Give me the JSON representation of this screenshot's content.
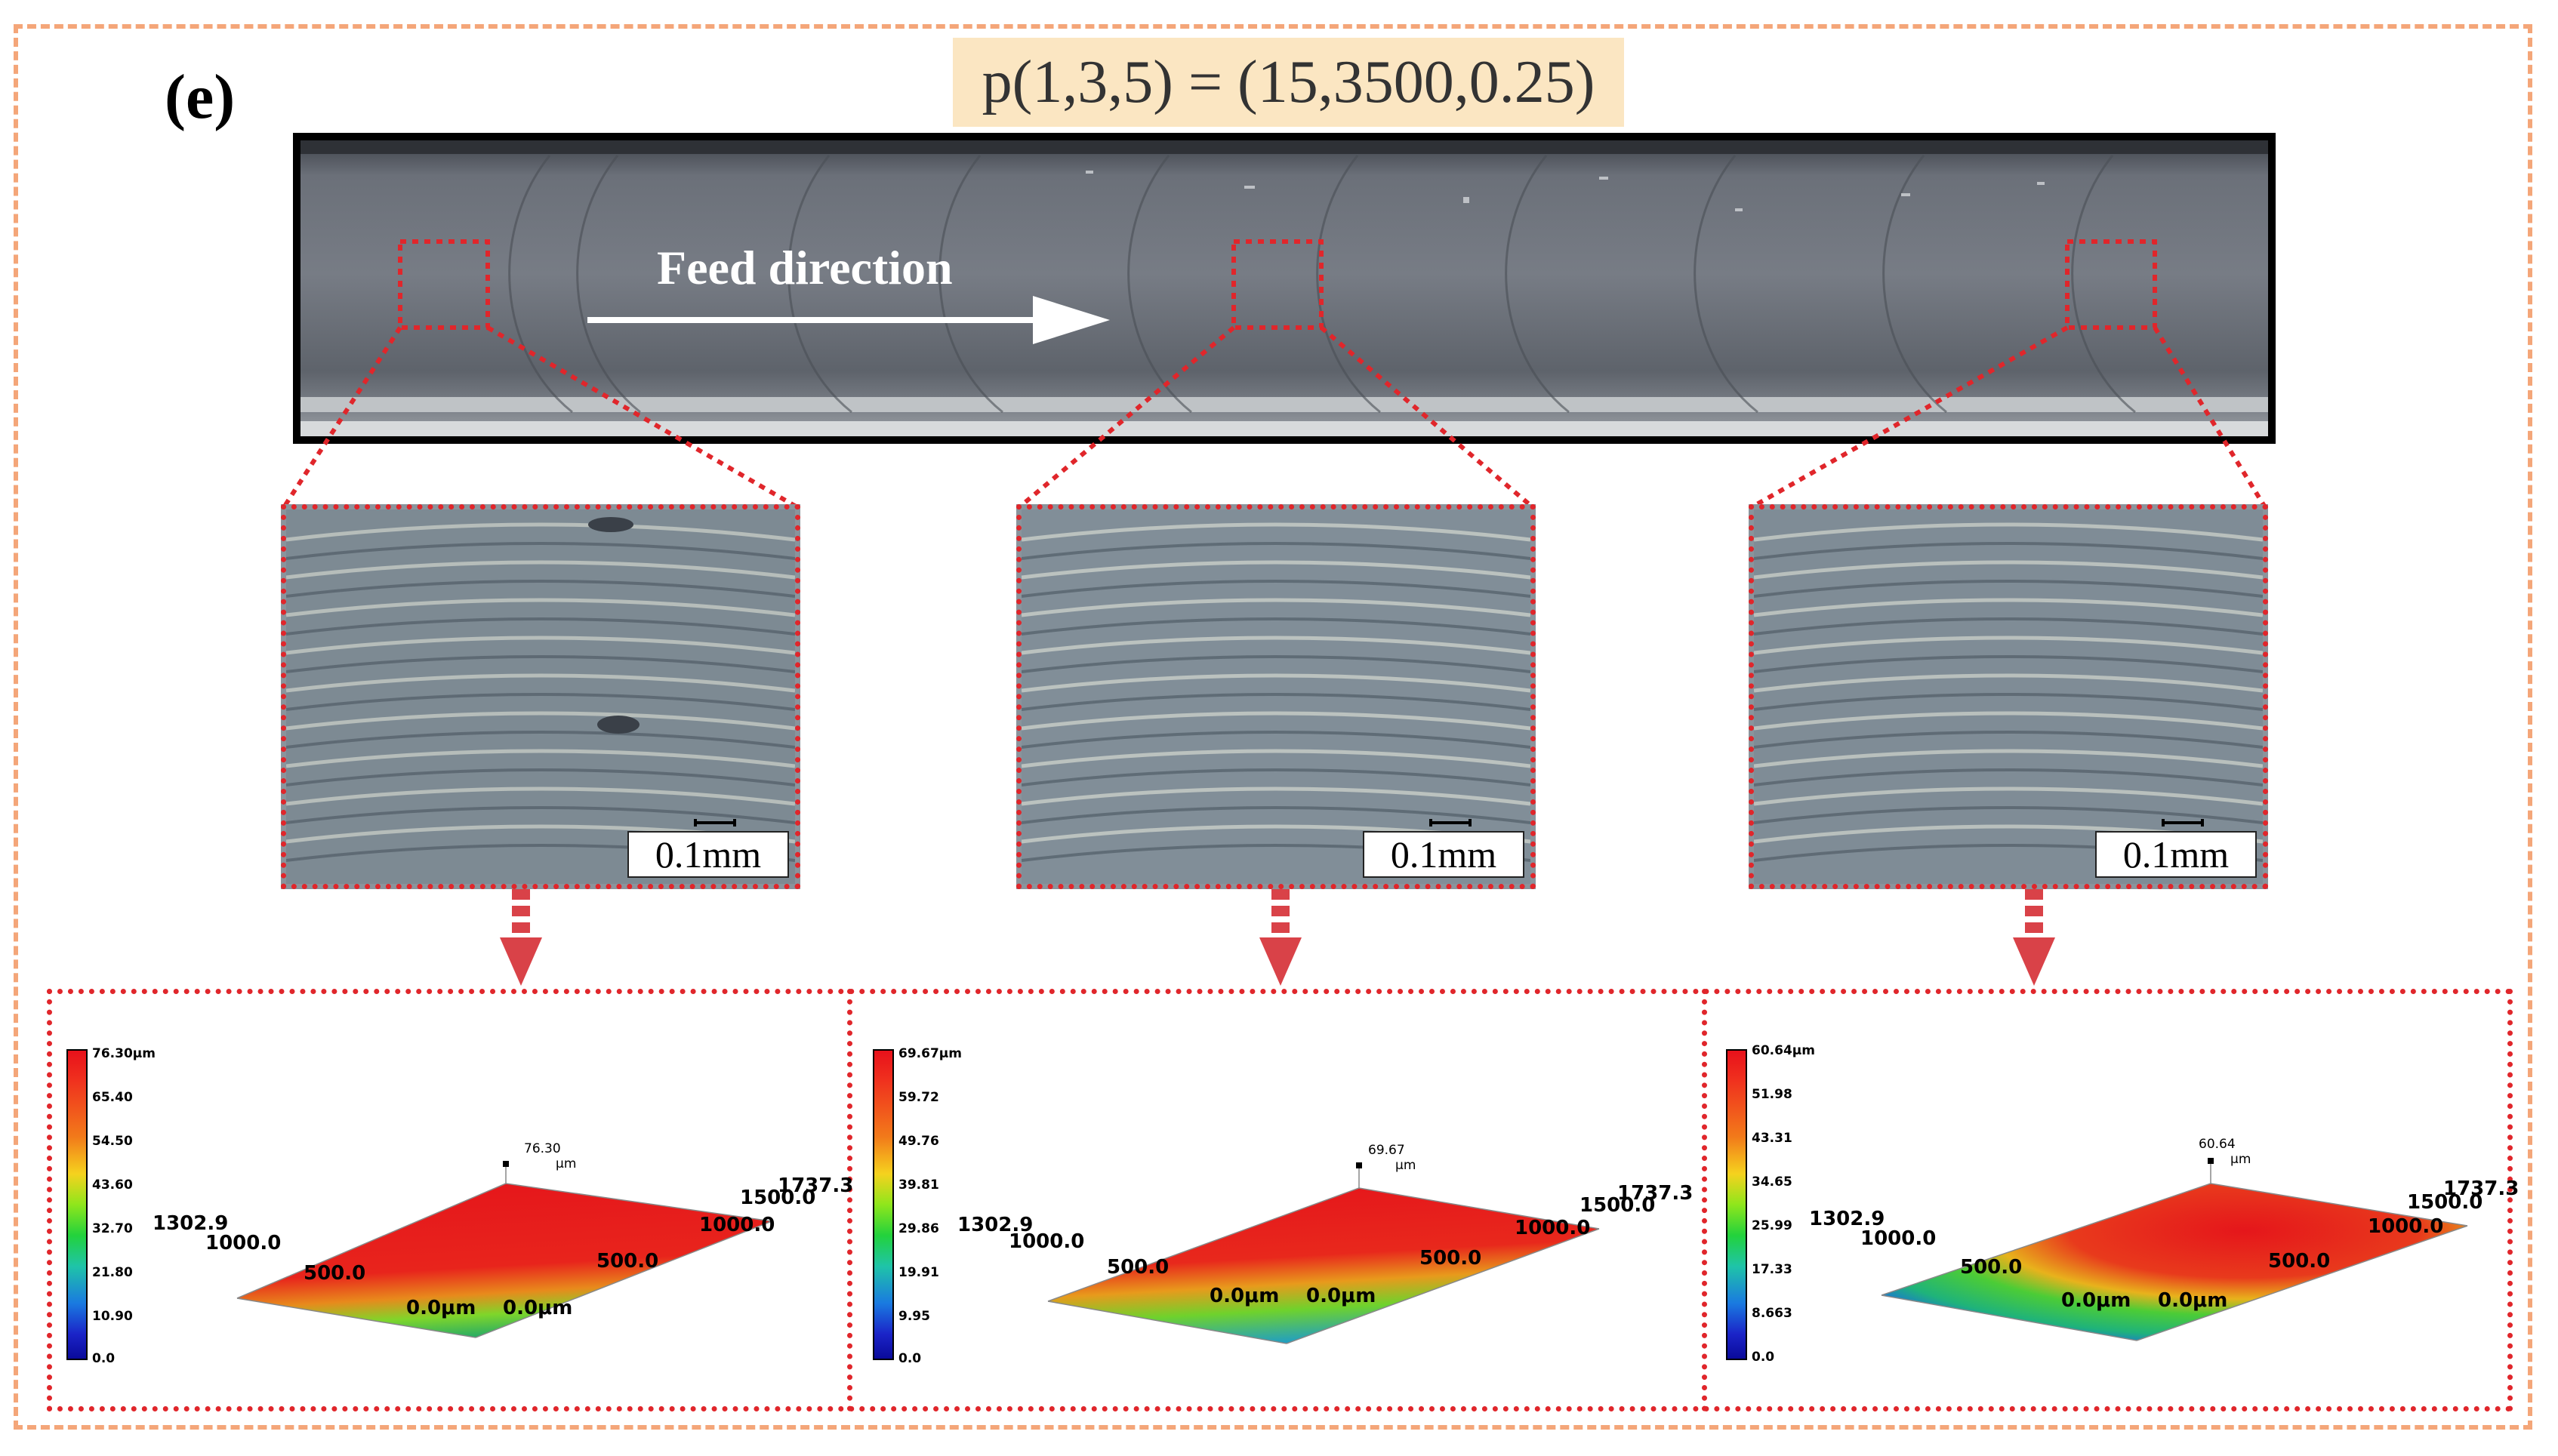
{
  "panel_label": "(e)",
  "parameters": "p(1,3,5) = (15,3500,0.25)",
  "feed_direction": "Feed direction",
  "colors": {
    "dash_frame": "#f4a679",
    "highlight_red": "#e0262b",
    "param_bg": "#fbe6c2"
  },
  "micrographs": [
    {
      "scale": "0.1mm"
    },
    {
      "scale": "0.1mm"
    },
    {
      "scale": "0.1mm"
    }
  ],
  "surface_plots": [
    {
      "colorbar": [
        "76.30μm",
        "65.40",
        "54.50",
        "43.60",
        "32.70",
        "21.80",
        "10.90",
        "0.0"
      ],
      "peak": "76.30",
      "peak_unit": "μm",
      "y_ticks": [
        "1302.9",
        "1000.0",
        "500.0",
        "0.0μm"
      ],
      "x_ticks": [
        "0.0μm",
        "500.0",
        "1000.0",
        "1500.0",
        "1737.3"
      ]
    },
    {
      "colorbar": [
        "69.67μm",
        "59.72",
        "49.76",
        "39.81",
        "29.86",
        "19.91",
        "9.95",
        "0.0"
      ],
      "peak": "69.67",
      "peak_unit": "μm",
      "y_ticks": [
        "1302.9",
        "1000.0",
        "500.0",
        "0.0μm"
      ],
      "x_ticks": [
        "0.0μm",
        "500.0",
        "1000.0",
        "1500.0",
        "1737.3"
      ]
    },
    {
      "colorbar": [
        "60.64μm",
        "51.98",
        "43.31",
        "34.65",
        "25.99",
        "17.33",
        "8.663",
        "0.0"
      ],
      "peak": "60.64",
      "peak_unit": "μm",
      "y_ticks": [
        "1302.9",
        "1000.0",
        "500.0",
        "0.0μm"
      ],
      "x_ticks": [
        "0.0μm",
        "500.0",
        "1000.0",
        "1500.0",
        "1737.3"
      ]
    }
  ]
}
